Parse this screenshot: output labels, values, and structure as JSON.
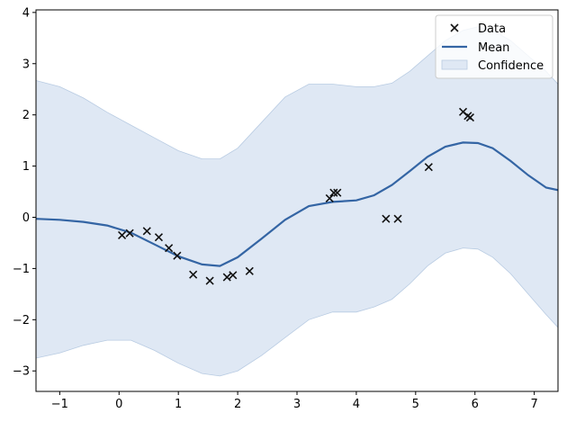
{
  "chart_data": {
    "type": "line",
    "title": "",
    "xlabel": "",
    "ylabel": "",
    "xlim": [
      -1.4,
      7.4
    ],
    "ylim": [
      -3.4,
      4.05
    ],
    "xticks": [
      -1,
      0,
      1,
      2,
      3,
      4,
      5,
      6,
      7
    ],
    "yticks": [
      -3,
      -2,
      -1,
      0,
      1,
      2,
      3,
      4
    ],
    "grid": false,
    "legend_position": "top-right",
    "colors": {
      "mean": "#3465a4",
      "confidence": "#dfe8f4",
      "confidence_edge": "#b8cbe2",
      "data": "#111111"
    },
    "legend": [
      {
        "label": "Data",
        "kind": "marker-x"
      },
      {
        "label": "Mean",
        "kind": "line"
      },
      {
        "label": "Confidence",
        "kind": "patch"
      }
    ],
    "data_points": {
      "name": "Data",
      "x": [
        0.05,
        0.18,
        0.47,
        0.67,
        0.84,
        0.98,
        1.25,
        1.53,
        1.82,
        1.92,
        2.2,
        3.55,
        3.62,
        3.68,
        4.5,
        4.7,
        5.22,
        5.8,
        5.88,
        5.92
      ],
      "y": [
        -0.35,
        -0.31,
        -0.27,
        -0.39,
        -0.6,
        -0.75,
        -1.12,
        -1.24,
        -1.17,
        -1.13,
        -1.05,
        0.37,
        0.48,
        0.48,
        -0.03,
        -0.03,
        0.98,
        2.06,
        1.98,
        1.95
      ]
    },
    "mean": {
      "name": "Mean",
      "x": [
        -1.4,
        -1.0,
        -0.6,
        -0.2,
        0.2,
        0.6,
        1.0,
        1.4,
        1.7,
        2.0,
        2.4,
        2.8,
        3.2,
        3.6,
        4.0,
        4.3,
        4.6,
        4.9,
        5.2,
        5.5,
        5.8,
        6.05,
        6.3,
        6.6,
        6.9,
        7.2,
        7.4
      ],
      "y": [
        -0.03,
        -0.05,
        -0.09,
        -0.16,
        -0.3,
        -0.53,
        -0.76,
        -0.92,
        -0.95,
        -0.78,
        -0.42,
        -0.05,
        0.22,
        0.3,
        0.33,
        0.43,
        0.63,
        0.9,
        1.18,
        1.38,
        1.46,
        1.45,
        1.35,
        1.1,
        0.82,
        0.58,
        0.53
      ]
    },
    "confidence": {
      "name": "Confidence",
      "x": [
        -1.4,
        -1.0,
        -0.6,
        -0.2,
        0.2,
        0.6,
        1.0,
        1.4,
        1.7,
        2.0,
        2.4,
        2.8,
        3.2,
        3.6,
        4.0,
        4.3,
        4.6,
        4.9,
        5.2,
        5.5,
        5.8,
        6.05,
        6.3,
        6.6,
        6.9,
        7.2,
        7.4
      ],
      "upper": [
        2.67,
        2.55,
        2.33,
        2.05,
        1.8,
        1.55,
        1.3,
        1.14,
        1.14,
        1.35,
        1.85,
        2.35,
        2.6,
        2.6,
        2.55,
        2.55,
        2.62,
        2.85,
        3.15,
        3.45,
        3.65,
        3.72,
        3.65,
        3.45,
        3.15,
        2.85,
        2.6
      ],
      "lower": [
        -2.75,
        -2.65,
        -2.5,
        -2.4,
        -2.4,
        -2.6,
        -2.85,
        -3.05,
        -3.1,
        -3.0,
        -2.7,
        -2.35,
        -2.0,
        -1.85,
        -1.85,
        -1.75,
        -1.6,
        -1.3,
        -0.95,
        -0.7,
        -0.6,
        -0.62,
        -0.78,
        -1.1,
        -1.5,
        -1.9,
        -2.15
      ]
    }
  }
}
